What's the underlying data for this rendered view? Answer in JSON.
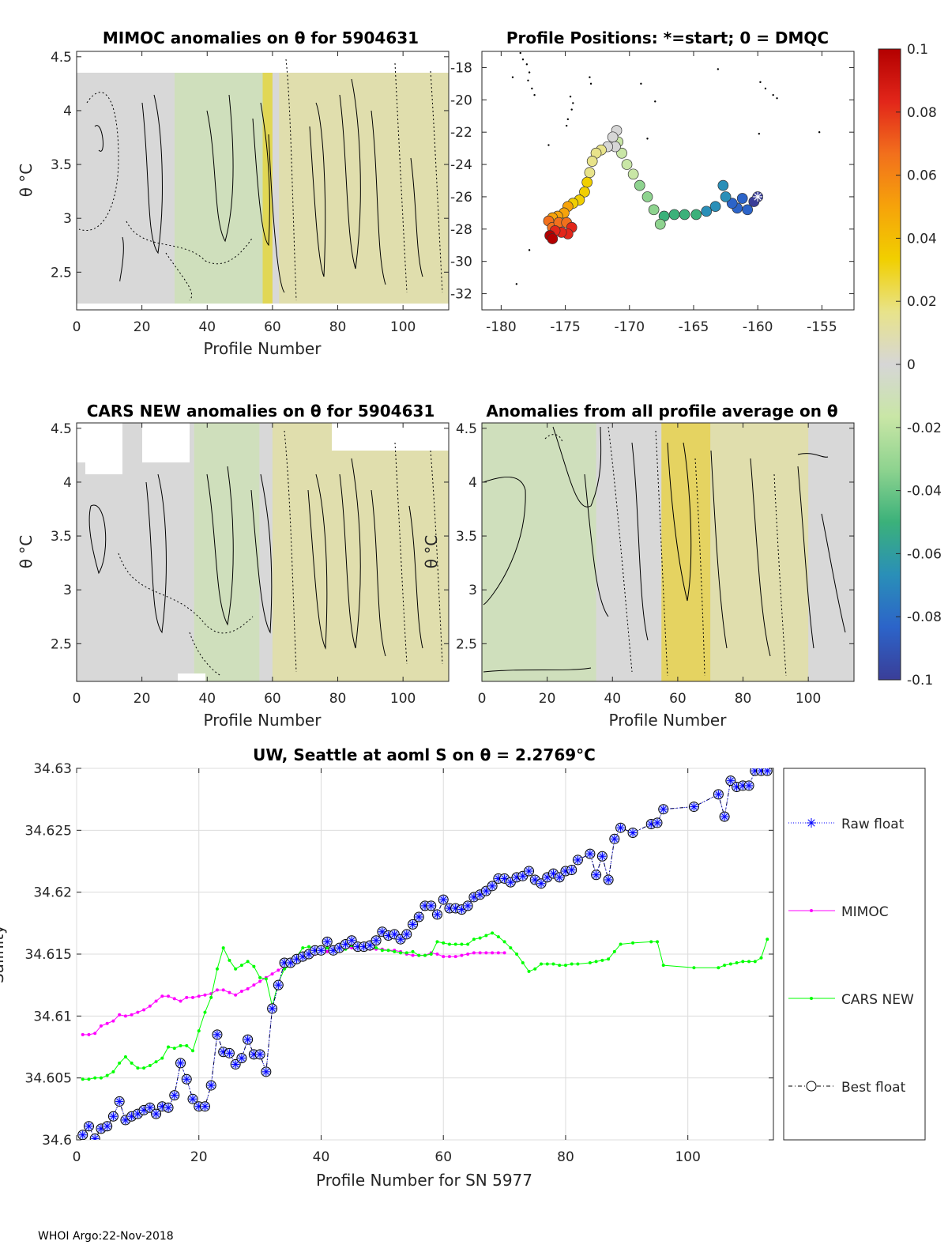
{
  "footer": "WHOI Argo:22-Nov-2018",
  "colorbar": {
    "ticks": [
      "0.1",
      "0.08",
      "0.06",
      "0.04",
      "0.02",
      "0",
      "-0.02",
      "-0.04",
      "-0.06",
      "-0.08",
      "-0.1"
    ],
    "stops": [
      "#b30000",
      "#e2261a",
      "#f2701c",
      "#f6a30a",
      "#f1cf00",
      "#e8e38a",
      "#d6d6d6",
      "#c9e6a6",
      "#8ed38f",
      "#3bb17a",
      "#2a8fb8",
      "#2c64c9",
      "#3a3e98"
    ]
  },
  "chart_data": [
    {
      "id": "mimoc_anom",
      "type": "heatmap",
      "title": "MIMOC anomalies on θ  for 5904631",
      "xlabel": "Profile Number",
      "ylabel": "θ °C",
      "xticks": [
        "0",
        "20",
        "40",
        "60",
        "80",
        "100"
      ],
      "yticks": [
        "4.5",
        "4",
        "3.5",
        "3",
        "2.5"
      ],
      "xlim": [
        0,
        114
      ],
      "ylim": [
        2.15,
        4.55
      ],
      "bands": [
        {
          "x0": 30,
          "x1": 60,
          "value": -0.02
        },
        {
          "x0": 57,
          "x1": 60,
          "value": 0.04
        },
        {
          "x0": 62,
          "x1": 114,
          "value": 0.02
        }
      ]
    },
    {
      "id": "positions",
      "type": "scatter",
      "title": "Profile Positions: *=start; 0 = DMQC",
      "xticks": [
        "-180",
        "-175",
        "-170",
        "-165",
        "-160",
        "-155"
      ],
      "yticks": [
        "-18",
        "-20",
        "-22",
        "-24",
        "-26",
        "-28",
        "-30",
        "-32"
      ],
      "xlim": [
        -181.5,
        -152.5
      ],
      "ylim": [
        -33,
        -17
      ],
      "track": [
        {
          "lon": -160.0,
          "lat": -26.0
        },
        {
          "lon": -160.3,
          "lat": -26.3
        },
        {
          "lon": -160.8,
          "lat": -26.8
        },
        {
          "lon": -161.2,
          "lat": -26.1
        },
        {
          "lon": -161.6,
          "lat": -26.7
        },
        {
          "lon": -162.0,
          "lat": -26.4
        },
        {
          "lon": -162.5,
          "lat": -26.0
        },
        {
          "lon": -162.7,
          "lat": -25.3
        },
        {
          "lon": -163.3,
          "lat": -26.6
        },
        {
          "lon": -164.0,
          "lat": -26.9
        },
        {
          "lon": -164.8,
          "lat": -27.1
        },
        {
          "lon": -165.7,
          "lat": -27.1
        },
        {
          "lon": -166.5,
          "lat": -27.1
        },
        {
          "lon": -167.3,
          "lat": -27.2
        },
        {
          "lon": -167.6,
          "lat": -27.7
        },
        {
          "lon": -168.1,
          "lat": -26.8
        },
        {
          "lon": -168.6,
          "lat": -26.0
        },
        {
          "lon": -169.2,
          "lat": -25.3
        },
        {
          "lon": -169.7,
          "lat": -24.6
        },
        {
          "lon": -170.2,
          "lat": -24.0
        },
        {
          "lon": -170.6,
          "lat": -23.3
        },
        {
          "lon": -170.9,
          "lat": -22.6
        },
        {
          "lon": -171.0,
          "lat": -21.9
        },
        {
          "lon": -171.3,
          "lat": -22.3
        },
        {
          "lon": -171.1,
          "lat": -22.9
        },
        {
          "lon": -171.7,
          "lat": -22.9
        },
        {
          "lon": -172.2,
          "lat": -23.1
        },
        {
          "lon": -172.6,
          "lat": -23.3
        },
        {
          "lon": -172.9,
          "lat": -23.8
        },
        {
          "lon": -173.1,
          "lat": -24.5
        },
        {
          "lon": -173.3,
          "lat": -25.1
        },
        {
          "lon": -173.5,
          "lat": -25.7
        },
        {
          "lon": -173.9,
          "lat": -26.2
        },
        {
          "lon": -174.4,
          "lat": -26.4
        },
        {
          "lon": -174.8,
          "lat": -26.6
        },
        {
          "lon": -175.1,
          "lat": -27.0
        },
        {
          "lon": -175.6,
          "lat": -27.2
        },
        {
          "lon": -176.0,
          "lat": -27.3
        },
        {
          "lon": -176.3,
          "lat": -27.5
        },
        {
          "lon": -176.0,
          "lat": -27.9
        },
        {
          "lon": -175.5,
          "lat": -27.6
        },
        {
          "lon": -174.9,
          "lat": -27.6
        },
        {
          "lon": -174.5,
          "lat": -27.9
        },
        {
          "lon": -174.8,
          "lat": -28.3
        },
        {
          "lon": -175.3,
          "lat": -28.2
        },
        {
          "lon": -175.8,
          "lat": -28.1
        },
        {
          "lon": -176.2,
          "lat": -28.4
        },
        {
          "lon": -176.0,
          "lat": -28.6
        }
      ],
      "climatology_points": [
        {
          "lon": -178.5,
          "lat": -17.1
        },
        {
          "lon": -178.3,
          "lat": -17.5
        },
        {
          "lon": -178.0,
          "lat": -17.8
        },
        {
          "lon": -177.8,
          "lat": -18.3
        },
        {
          "lon": -177.9,
          "lat": -18.8
        },
        {
          "lon": -177.6,
          "lat": -19.3
        },
        {
          "lon": -177.4,
          "lat": -19.7
        },
        {
          "lon": -179.1,
          "lat": -18.6
        },
        {
          "lon": -174.6,
          "lat": -19.8
        },
        {
          "lon": -174.4,
          "lat": -20.2
        },
        {
          "lon": -174.5,
          "lat": -20.6
        },
        {
          "lon": -174.8,
          "lat": -21.2
        },
        {
          "lon": -174.9,
          "lat": -21.6
        },
        {
          "lon": -173.1,
          "lat": -18.6
        },
        {
          "lon": -173.0,
          "lat": -19.0
        },
        {
          "lon": -169.1,
          "lat": -19.0
        },
        {
          "lon": -168.0,
          "lat": -20.1
        },
        {
          "lon": -168.6,
          "lat": -22.4
        },
        {
          "lon": -163.1,
          "lat": -18.1
        },
        {
          "lon": -159.8,
          "lat": -18.9
        },
        {
          "lon": -159.4,
          "lat": -19.3
        },
        {
          "lon": -158.8,
          "lat": -19.7
        },
        {
          "lon": -158.5,
          "lat": -19.9
        },
        {
          "lon": -159.9,
          "lat": -22.1
        },
        {
          "lon": -155.2,
          "lat": -22.0
        },
        {
          "lon": -178.8,
          "lat": -31.4
        },
        {
          "lon": -177.8,
          "lat": -29.3
        },
        {
          "lon": -176.3,
          "lat": -22.8
        }
      ]
    },
    {
      "id": "cars_anom",
      "type": "heatmap",
      "title": "CARS NEW anomalies on θ for 5904631",
      "xlabel": "Profile Number",
      "ylabel": "θ °C",
      "xticks": [
        "0",
        "20",
        "40",
        "60",
        "80",
        "100"
      ],
      "yticks": [
        "4.5",
        "4",
        "3.5",
        "3",
        "2.5"
      ],
      "xlim": [
        0,
        114
      ],
      "ylim": [
        2.15,
        4.55
      ],
      "bands": [
        {
          "x0": 36,
          "x1": 56,
          "value": -0.02
        },
        {
          "x0": 60,
          "x1": 114,
          "value": 0.02
        }
      ]
    },
    {
      "id": "profile_avg_anom",
      "type": "heatmap",
      "title": "Anomalies from all profile average on θ",
      "xlabel": "Profile Number",
      "ylabel": "θ °C",
      "xticks": [
        "0",
        "20",
        "40",
        "60",
        "80",
        "100"
      ],
      "yticks": [
        "4.5",
        "4",
        "3.5",
        "3",
        "2.5"
      ],
      "xlim": [
        0,
        114
      ],
      "ylim": [
        2.15,
        4.55
      ],
      "bands": [
        {
          "x0": 0,
          "x1": 35,
          "value": -0.02
        },
        {
          "x0": 55,
          "x1": 70,
          "value": 0.04
        },
        {
          "x0": 70,
          "x1": 100,
          "value": 0.02
        }
      ]
    },
    {
      "id": "salinity_series",
      "type": "line",
      "title": "UW, Seattle at aoml S on θ = 2.2769°C",
      "xlabel": "Profile Number for SN 5977",
      "ylabel": "Salinity",
      "xticks": [
        "0",
        "20",
        "40",
        "60",
        "80",
        "100"
      ],
      "yticks": [
        "34.63",
        "34.625",
        "34.62",
        "34.615",
        "34.61",
        "34.605",
        "34.6"
      ],
      "xlim": [
        0,
        114
      ],
      "ylim": [
        34.6,
        34.63
      ],
      "grid": true,
      "legend_position": "right",
      "series": [
        {
          "name": "Raw float",
          "color": "#0000ff",
          "x": [
            1,
            2,
            3,
            4,
            5,
            6,
            7,
            8,
            9,
            10,
            11,
            12,
            13,
            14,
            15,
            16,
            17,
            18,
            19,
            20,
            21,
            22,
            23,
            24,
            25,
            26,
            27,
            28,
            29,
            30,
            31,
            32,
            33,
            34,
            35,
            36,
            37,
            38,
            39,
            40,
            41,
            42,
            43,
            44,
            45,
            46,
            47,
            48,
            49,
            50,
            51,
            52,
            53,
            54,
            55,
            56,
            57,
            58,
            59,
            60,
            61,
            62,
            63,
            64,
            65,
            66,
            67,
            68,
            69,
            70,
            71,
            72,
            73,
            74,
            75,
            76,
            77,
            78,
            79,
            80,
            81,
            82,
            84,
            85,
            86,
            87,
            88,
            89,
            91,
            94,
            95,
            96,
            101,
            105,
            106,
            107,
            108,
            109,
            110,
            111,
            112,
            113
          ],
          "values": [
            34.6004,
            34.6011,
            34.6001,
            34.6009,
            34.6011,
            34.6019,
            34.6031,
            34.6016,
            34.6019,
            34.6021,
            34.6024,
            34.6026,
            34.6021,
            34.6027,
            34.6026,
            34.6036,
            34.6062,
            34.6049,
            34.6033,
            34.6027,
            34.6027,
            34.6044,
            34.6085,
            34.6071,
            34.607,
            34.6061,
            34.6066,
            34.6081,
            34.6069,
            34.6069,
            34.6055,
            34.6106,
            34.6125,
            34.6143,
            34.6143,
            34.6146,
            34.6148,
            34.615,
            34.6153,
            34.6153,
            34.616,
            34.6153,
            34.6155,
            34.6158,
            34.6161,
            34.6156,
            34.6156,
            34.6157,
            34.6161,
            34.6168,
            34.6165,
            34.6166,
            34.6162,
            34.6166,
            34.6174,
            34.618,
            34.6189,
            34.6189,
            34.6182,
            34.6194,
            34.6187,
            34.6187,
            34.6186,
            34.6189,
            34.6196,
            34.6198,
            34.6201,
            34.6205,
            34.6211,
            34.6211,
            34.6208,
            34.6212,
            34.6213,
            34.6217,
            34.621,
            34.6207,
            34.6212,
            34.6215,
            34.6212,
            34.6217,
            34.6218,
            34.6226,
            34.6231,
            34.6214,
            34.6229,
            34.621,
            34.6243,
            34.6252,
            34.6248,
            34.6255,
            34.6256,
            34.6267,
            34.6269,
            34.6279,
            34.6261,
            34.629,
            34.6285,
            34.6286,
            34.6286,
            34.6298,
            34.6298,
            34.6298
          ]
        },
        {
          "name": "MIMOC",
          "color": "#ff00ff",
          "x": [
            1,
            2,
            3,
            4,
            5,
            6,
            7,
            8,
            9,
            10,
            11,
            12,
            13,
            14,
            15,
            16,
            17,
            18,
            19,
            20,
            21,
            22,
            23,
            24,
            25,
            26,
            27,
            28,
            29,
            30,
            31,
            32,
            33,
            34,
            35,
            36,
            37,
            38,
            39,
            40,
            41,
            42,
            43,
            44,
            45,
            46,
            47,
            48,
            49,
            50,
            51,
            52,
            53,
            54,
            55,
            56,
            57,
            58,
            59,
            60,
            61,
            62,
            63,
            64,
            65,
            66,
            67,
            68,
            69,
            70
          ],
          "values": [
            34.6085,
            34.6085,
            34.6086,
            34.6092,
            34.6094,
            34.6096,
            34.6101,
            34.61,
            34.6101,
            34.6103,
            34.6105,
            34.6108,
            34.6112,
            34.6116,
            34.6116,
            34.6114,
            34.6112,
            34.6115,
            34.6115,
            34.6116,
            34.6117,
            34.6118,
            34.6121,
            34.6121,
            34.6119,
            34.6117,
            34.612,
            34.6122,
            34.6125,
            34.6128,
            34.6131,
            34.6134,
            34.6137,
            34.614,
            34.6143,
            34.6146,
            34.6149,
            34.615,
            34.615,
            34.6153,
            34.6152,
            34.6153,
            34.6154,
            34.6155,
            34.6155,
            34.6154,
            34.6154,
            34.6154,
            34.6154,
            34.6154,
            34.6153,
            34.6153,
            34.6152,
            34.615,
            34.6149,
            34.6149,
            34.6149,
            34.6151,
            34.615,
            34.6148,
            34.6148,
            34.6148,
            34.6149,
            34.615,
            34.6151,
            34.6151,
            34.6151,
            34.6151,
            34.6151,
            34.6151
          ]
        },
        {
          "name": "CARS NEW",
          "color": "#00ff00",
          "x": [
            1,
            2,
            3,
            4,
            5,
            6,
            7,
            8,
            9,
            10,
            11,
            12,
            13,
            14,
            15,
            16,
            17,
            18,
            19,
            20,
            21,
            22,
            23,
            24,
            25,
            26,
            27,
            28,
            29,
            30,
            31,
            32,
            33,
            34,
            35,
            36,
            37,
            38,
            39,
            40,
            41,
            42,
            43,
            44,
            45,
            46,
            47,
            48,
            49,
            50,
            51,
            52,
            53,
            54,
            55,
            56,
            57,
            58,
            59,
            60,
            61,
            62,
            63,
            64,
            65,
            66,
            67,
            68,
            69,
            70,
            71,
            72,
            73,
            74,
            75,
            76,
            77,
            78,
            79,
            80,
            81,
            82,
            84,
            85,
            86,
            87,
            88,
            89,
            91,
            94,
            95,
            96,
            101,
            105,
            106,
            107,
            108,
            109,
            110,
            111,
            112,
            113
          ],
          "values": [
            34.6049,
            34.6049,
            34.605,
            34.605,
            34.6052,
            34.6055,
            34.6062,
            34.6067,
            34.6062,
            34.6058,
            34.6058,
            34.606,
            34.6063,
            34.6066,
            34.6075,
            34.6074,
            34.6076,
            34.6076,
            34.6072,
            34.6088,
            34.6103,
            34.6115,
            34.6138,
            34.6155,
            34.6145,
            34.6138,
            34.6141,
            34.6144,
            34.614,
            34.6131,
            34.613,
            34.6108,
            34.6127,
            34.6138,
            34.6141,
            34.6148,
            34.6155,
            34.6156,
            34.6155,
            34.6155,
            34.6155,
            34.6153,
            34.6155,
            34.6154,
            34.6157,
            34.6156,
            34.6155,
            34.6155,
            34.6155,
            34.6153,
            34.6153,
            34.6152,
            34.6151,
            34.6151,
            34.6152,
            34.6149,
            34.6149,
            34.615,
            34.616,
            34.6159,
            34.6158,
            34.6158,
            34.6158,
            34.6158,
            34.6162,
            34.6163,
            34.6165,
            34.6167,
            34.6164,
            34.616,
            34.6155,
            34.615,
            34.6143,
            34.6136,
            34.6138,
            34.6142,
            34.6142,
            34.6142,
            34.6141,
            34.6141,
            34.6142,
            34.6142,
            34.6143,
            34.6144,
            34.6145,
            34.6146,
            34.6152,
            34.6158,
            34.6159,
            34.616,
            34.616,
            34.6141,
            34.6139,
            34.6139,
            34.6141,
            34.6142,
            34.6143,
            34.6144,
            34.6144,
            34.6144,
            34.6147,
            34.6162
          ]
        },
        {
          "name": "Best float",
          "color": "#000000",
          "ref": "Raw float"
        }
      ]
    }
  ]
}
